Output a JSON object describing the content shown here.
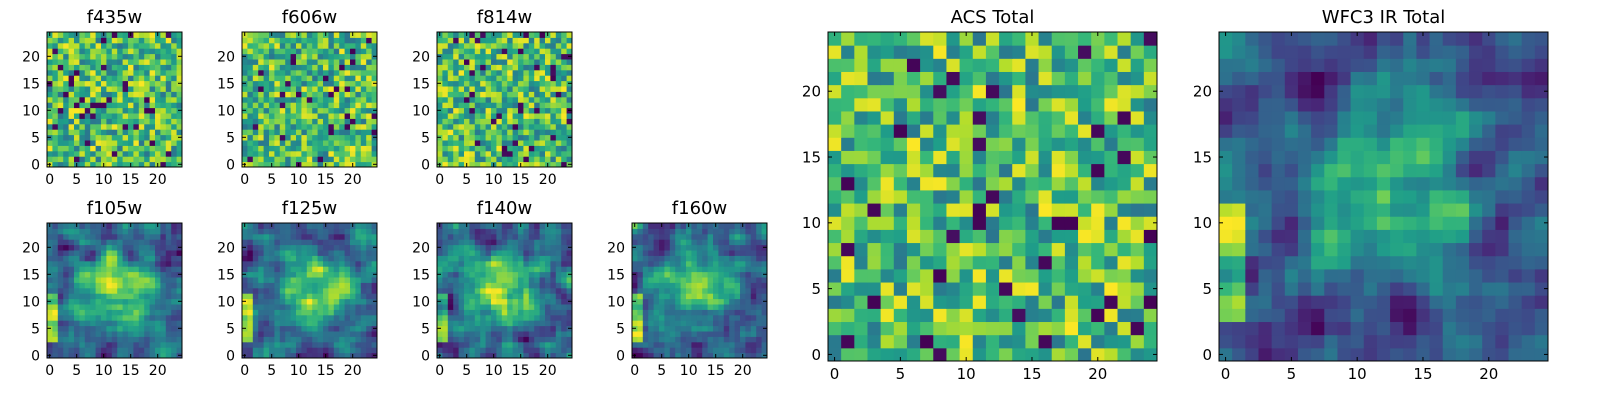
{
  "chart_data": [
    {
      "type": "heatmap",
      "title": "f435w",
      "xticks": [
        "0",
        "5",
        "10",
        "15",
        "20"
      ],
      "yticks": [
        "0",
        "5",
        "10",
        "15",
        "20"
      ],
      "xlim": [
        -0.5,
        24.5
      ],
      "ylim": [
        -0.5,
        24.5
      ],
      "grid": false,
      "colormap": "viridis",
      "seed": 11,
      "pattern": "noise"
    },
    {
      "type": "heatmap",
      "title": "f606w",
      "xticks": [
        "0",
        "5",
        "10",
        "15",
        "20"
      ],
      "yticks": [
        "0",
        "5",
        "10",
        "15",
        "20"
      ],
      "xlim": [
        -0.5,
        24.5
      ],
      "ylim": [
        -0.5,
        24.5
      ],
      "grid": false,
      "colormap": "viridis",
      "seed": 23,
      "pattern": "noise"
    },
    {
      "type": "heatmap",
      "title": "f814w",
      "xticks": [
        "0",
        "5",
        "10",
        "15",
        "20"
      ],
      "yticks": [
        "0",
        "5",
        "10",
        "15",
        "20"
      ],
      "xlim": [
        -0.5,
        24.5
      ],
      "ylim": [
        -0.5,
        24.5
      ],
      "grid": false,
      "colormap": "viridis",
      "seed": 37,
      "pattern": "noise"
    },
    {
      "type": "heatmap",
      "title": "f105w",
      "xticks": [
        "0",
        "5",
        "10",
        "15",
        "20"
      ],
      "yticks": [
        "0",
        "5",
        "10",
        "15",
        "20"
      ],
      "xlim": [
        -0.5,
        24.5
      ],
      "ylim": [
        -0.5,
        24.5
      ],
      "grid": false,
      "colormap": "viridis",
      "seed": 41,
      "pattern": "smooth"
    },
    {
      "type": "heatmap",
      "title": "f125w",
      "xticks": [
        "0",
        "5",
        "10",
        "15",
        "20"
      ],
      "yticks": [
        "0",
        "5",
        "10",
        "15",
        "20"
      ],
      "xlim": [
        -0.5,
        24.5
      ],
      "ylim": [
        -0.5,
        24.5
      ],
      "grid": false,
      "colormap": "viridis",
      "seed": 53,
      "pattern": "smooth"
    },
    {
      "type": "heatmap",
      "title": "f140w",
      "xticks": [
        "0",
        "5",
        "10",
        "15",
        "20"
      ],
      "yticks": [
        "0",
        "5",
        "10",
        "15",
        "20"
      ],
      "xlim": [
        -0.5,
        24.5
      ],
      "ylim": [
        -0.5,
        24.5
      ],
      "grid": false,
      "colormap": "viridis",
      "seed": 67,
      "pattern": "smooth"
    },
    {
      "type": "heatmap",
      "title": "f160w",
      "xticks": [
        "0",
        "5",
        "10",
        "15",
        "20"
      ],
      "yticks": [
        "0",
        "5",
        "10",
        "15",
        "20"
      ],
      "xlim": [
        -0.5,
        24.5
      ],
      "ylim": [
        -0.5,
        24.5
      ],
      "grid": false,
      "colormap": "viridis",
      "seed": 71,
      "pattern": "smooth"
    },
    {
      "type": "heatmap",
      "title": "ACS Total",
      "xticks": [
        "0",
        "5",
        "10",
        "15",
        "20"
      ],
      "yticks": [
        "0",
        "5",
        "10",
        "15",
        "20"
      ],
      "xlim": [
        -0.5,
        24.5
      ],
      "ylim": [
        -0.5,
        24.5
      ],
      "grid": false,
      "colormap": "viridis",
      "seed": 83,
      "pattern": "noise"
    },
    {
      "type": "heatmap",
      "title": "WFC3 IR Total",
      "xticks": [
        "0",
        "5",
        "10",
        "15",
        "20"
      ],
      "yticks": [
        "0",
        "5",
        "10",
        "15",
        "20"
      ],
      "xlim": [
        -0.5,
        24.5
      ],
      "ylim": [
        -0.5,
        24.5
      ],
      "grid": false,
      "colormap": "viridis",
      "seed": 97,
      "pattern": "smooth"
    }
  ]
}
